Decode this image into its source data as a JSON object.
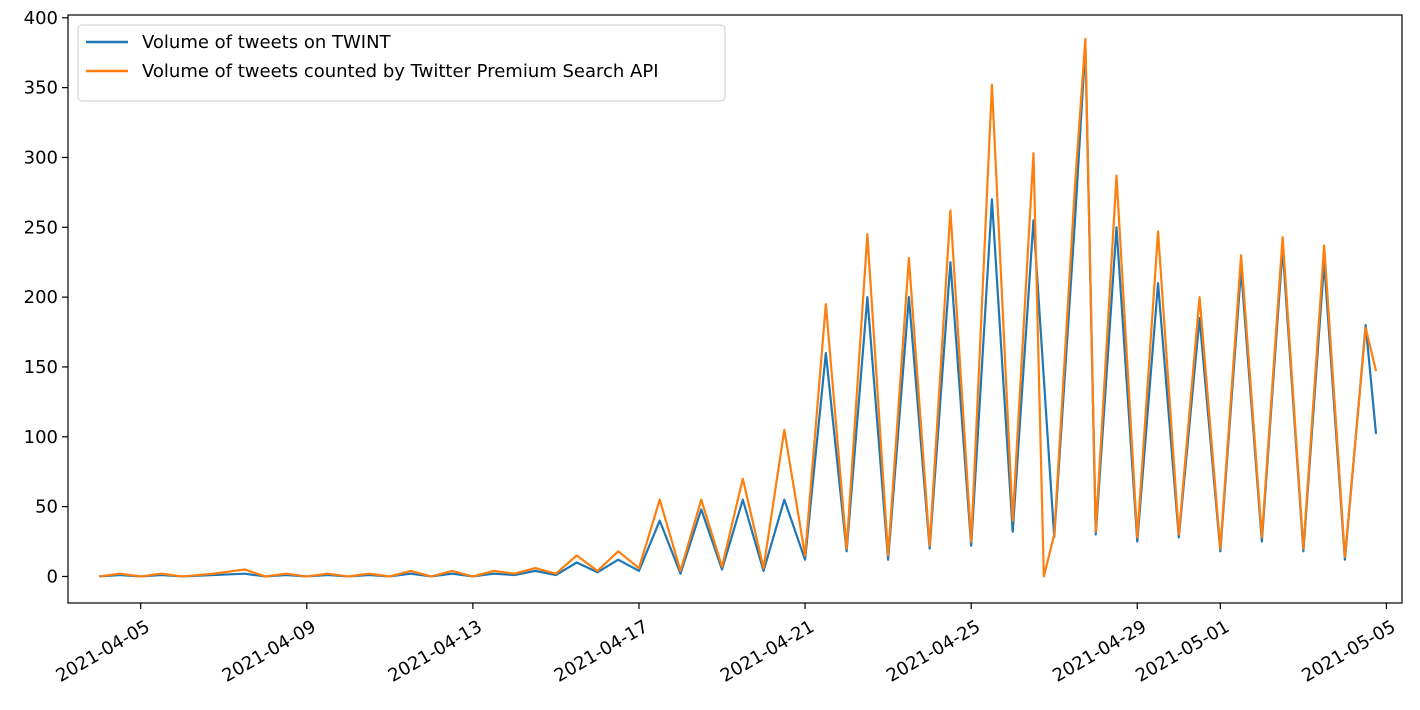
{
  "chart_data": {
    "type": "line",
    "title": "",
    "xlabel": "",
    "ylabel": "",
    "x_range": [
      "2021-04-03 06:00",
      "2021-05-05 09:00"
    ],
    "ylim": [
      -19,
      402
    ],
    "x_tick_labels": [
      "2021-04-05",
      "2021-04-09",
      "2021-04-13",
      "2021-04-17",
      "2021-04-21",
      "2021-04-25",
      "2021-04-29",
      "2021-05-01",
      "2021-05-05"
    ],
    "x_tick_dates": [
      "2021-04-05",
      "2021-04-09",
      "2021-04-13",
      "2021-04-17",
      "2021-04-21",
      "2021-04-25",
      "2021-04-29",
      "2021-05-01",
      "2021-05-05"
    ],
    "y_ticks": [
      0,
      50,
      100,
      150,
      200,
      250,
      300,
      350,
      400
    ],
    "grid": false,
    "legend_position": "top-left",
    "series": [
      {
        "name": "Volume of tweets on TWINT",
        "color": "#1f77b4",
        "points": [
          [
            "2021-04-04 00:00",
            0
          ],
          [
            "2021-04-04 12:00",
            1
          ],
          [
            "2021-04-05 00:00",
            0
          ],
          [
            "2021-04-05 12:00",
            1
          ],
          [
            "2021-04-06 00:00",
            0
          ],
          [
            "2021-04-06 18:00",
            1
          ],
          [
            "2021-04-07 12:00",
            2
          ],
          [
            "2021-04-08 00:00",
            0
          ],
          [
            "2021-04-08 12:00",
            1
          ],
          [
            "2021-04-09 00:00",
            0
          ],
          [
            "2021-04-09 12:00",
            1
          ],
          [
            "2021-04-10 00:00",
            0
          ],
          [
            "2021-04-10 12:00",
            1
          ],
          [
            "2021-04-11 00:00",
            0
          ],
          [
            "2021-04-11 12:00",
            2
          ],
          [
            "2021-04-12 00:00",
            0
          ],
          [
            "2021-04-12 12:00",
            2
          ],
          [
            "2021-04-13 00:00",
            0
          ],
          [
            "2021-04-13 12:00",
            2
          ],
          [
            "2021-04-14 00:00",
            1
          ],
          [
            "2021-04-14 12:00",
            4
          ],
          [
            "2021-04-15 00:00",
            1
          ],
          [
            "2021-04-15 12:00",
            10
          ],
          [
            "2021-04-16 00:00",
            3
          ],
          [
            "2021-04-16 12:00",
            12
          ],
          [
            "2021-04-17 00:00",
            4
          ],
          [
            "2021-04-17 12:00",
            40
          ],
          [
            "2021-04-18 00:00",
            2
          ],
          [
            "2021-04-18 12:00",
            48
          ],
          [
            "2021-04-19 00:00",
            5
          ],
          [
            "2021-04-19 12:00",
            55
          ],
          [
            "2021-04-20 00:00",
            4
          ],
          [
            "2021-04-20 12:00",
            55
          ],
          [
            "2021-04-21 00:00",
            12
          ],
          [
            "2021-04-21 12:00",
            160
          ],
          [
            "2021-04-22 00:00",
            18
          ],
          [
            "2021-04-22 12:00",
            200
          ],
          [
            "2021-04-23 00:00",
            12
          ],
          [
            "2021-04-23 12:00",
            200
          ],
          [
            "2021-04-24 00:00",
            20
          ],
          [
            "2021-04-24 12:00",
            225
          ],
          [
            "2021-04-25 00:00",
            22
          ],
          [
            "2021-04-25 12:00",
            270
          ],
          [
            "2021-04-26 00:00",
            32
          ],
          [
            "2021-04-26 12:00",
            255
          ],
          [
            "2021-04-27 00:00",
            28
          ],
          [
            "2021-04-27 12:00",
            255
          ],
          [
            "2021-04-27 18:00",
            380
          ],
          [
            "2021-04-28 00:00",
            30
          ],
          [
            "2021-04-28 12:00",
            250
          ],
          [
            "2021-04-29 00:00",
            25
          ],
          [
            "2021-04-29 12:00",
            210
          ],
          [
            "2021-04-30 00:00",
            28
          ],
          [
            "2021-04-30 12:00",
            185
          ],
          [
            "2021-05-01 00:00",
            18
          ],
          [
            "2021-05-01 12:00",
            220
          ],
          [
            "2021-05-02 00:00",
            25
          ],
          [
            "2021-05-02 12:00",
            235
          ],
          [
            "2021-05-03 00:00",
            18
          ],
          [
            "2021-05-03 12:00",
            225
          ],
          [
            "2021-05-04 00:00",
            12
          ],
          [
            "2021-05-04 12:00",
            180
          ],
          [
            "2021-05-04 18:00",
            102
          ]
        ]
      },
      {
        "name": "Volume of tweets counted by Twitter Premium Search API",
        "color": "#ff7f0e",
        "points": [
          [
            "2021-04-04 00:00",
            0
          ],
          [
            "2021-04-04 12:00",
            2
          ],
          [
            "2021-04-05 00:00",
            0
          ],
          [
            "2021-04-05 12:00",
            2
          ],
          [
            "2021-04-06 00:00",
            0
          ],
          [
            "2021-04-06 18:00",
            2
          ],
          [
            "2021-04-07 12:00",
            5
          ],
          [
            "2021-04-08 00:00",
            0
          ],
          [
            "2021-04-08 12:00",
            2
          ],
          [
            "2021-04-09 00:00",
            0
          ],
          [
            "2021-04-09 12:00",
            2
          ],
          [
            "2021-04-10 00:00",
            0
          ],
          [
            "2021-04-10 12:00",
            2
          ],
          [
            "2021-04-11 00:00",
            0
          ],
          [
            "2021-04-11 12:00",
            4
          ],
          [
            "2021-04-12 00:00",
            0
          ],
          [
            "2021-04-12 12:00",
            4
          ],
          [
            "2021-04-13 00:00",
            0
          ],
          [
            "2021-04-13 12:00",
            4
          ],
          [
            "2021-04-14 00:00",
            2
          ],
          [
            "2021-04-14 12:00",
            6
          ],
          [
            "2021-04-15 00:00",
            2
          ],
          [
            "2021-04-15 12:00",
            15
          ],
          [
            "2021-04-16 00:00",
            4
          ],
          [
            "2021-04-16 12:00",
            18
          ],
          [
            "2021-04-17 00:00",
            6
          ],
          [
            "2021-04-17 12:00",
            55
          ],
          [
            "2021-04-18 00:00",
            4
          ],
          [
            "2021-04-18 12:00",
            55
          ],
          [
            "2021-04-19 00:00",
            7
          ],
          [
            "2021-04-19 12:00",
            70
          ],
          [
            "2021-04-20 00:00",
            6
          ],
          [
            "2021-04-20 12:00",
            105
          ],
          [
            "2021-04-21 00:00",
            15
          ],
          [
            "2021-04-21 12:00",
            195
          ],
          [
            "2021-04-22 00:00",
            20
          ],
          [
            "2021-04-22 12:00",
            245
          ],
          [
            "2021-04-23 00:00",
            15
          ],
          [
            "2021-04-23 12:00",
            228
          ],
          [
            "2021-04-24 00:00",
            22
          ],
          [
            "2021-04-24 12:00",
            262
          ],
          [
            "2021-04-25 00:00",
            25
          ],
          [
            "2021-04-25 12:00",
            352
          ],
          [
            "2021-04-26 00:00",
            40
          ],
          [
            "2021-04-26 12:00",
            303
          ],
          [
            "2021-04-26 18:00",
            0
          ],
          [
            "2021-04-27 00:00",
            30
          ],
          [
            "2021-04-27 12:00",
            280
          ],
          [
            "2021-04-27 18:00",
            385
          ],
          [
            "2021-04-28 00:00",
            32
          ],
          [
            "2021-04-28 12:00",
            287
          ],
          [
            "2021-04-29 00:00",
            28
          ],
          [
            "2021-04-29 12:00",
            247
          ],
          [
            "2021-04-30 00:00",
            30
          ],
          [
            "2021-04-30 12:00",
            200
          ],
          [
            "2021-05-01 00:00",
            20
          ],
          [
            "2021-05-01 12:00",
            230
          ],
          [
            "2021-05-02 00:00",
            28
          ],
          [
            "2021-05-02 12:00",
            243
          ],
          [
            "2021-05-03 00:00",
            20
          ],
          [
            "2021-05-03 12:00",
            237
          ],
          [
            "2021-05-04 00:00",
            14
          ],
          [
            "2021-05-04 12:00",
            178
          ],
          [
            "2021-05-04 18:00",
            147
          ]
        ]
      }
    ]
  }
}
